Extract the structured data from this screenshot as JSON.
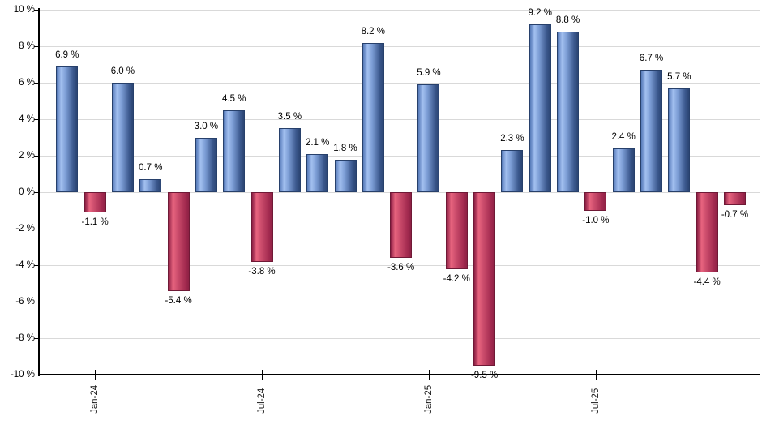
{
  "chart_data": {
    "type": "bar",
    "title": "",
    "xlabel": "",
    "ylabel": "",
    "grid": true,
    "legend_visible": false,
    "y_axis": {
      "min": -10,
      "max": 10,
      "tick_step": 2,
      "unit": "%",
      "tick_labels": [
        "10 %",
        "8 %",
        "6 %",
        "4 %",
        "2 %",
        "0 %",
        "-2 %",
        "-4 %",
        "-6 %",
        "-8 %",
        "-10 %"
      ]
    },
    "x_axis": {
      "tick_labels": [
        "Jan-24",
        "Jul-24",
        "Jan-25",
        "Jul-25"
      ],
      "tick_bar_indices": [
        1,
        7,
        13,
        19
      ]
    },
    "bars": [
      {
        "value": 6.9,
        "label": "6.9 %"
      },
      {
        "value": -1.1,
        "label": "-1.1 %"
      },
      {
        "value": 6.0,
        "label": "6.0 %"
      },
      {
        "value": 0.7,
        "label": "0.7 %"
      },
      {
        "value": -5.4,
        "label": "-5.4 %"
      },
      {
        "value": 3.0,
        "label": "3.0 %"
      },
      {
        "value": 4.5,
        "label": "4.5 %"
      },
      {
        "value": -3.8,
        "label": "-3.8 %"
      },
      {
        "value": 3.5,
        "label": "3.5 %"
      },
      {
        "value": 2.1,
        "label": "2.1 %"
      },
      {
        "value": 1.8,
        "label": "1.8 %"
      },
      {
        "value": 8.2,
        "label": "8.2 %"
      },
      {
        "value": -3.6,
        "label": "-3.6 %"
      },
      {
        "value": 5.9,
        "label": "5.9 %"
      },
      {
        "value": -4.2,
        "label": "-4.2 %"
      },
      {
        "value": -9.5,
        "label": "-9.5 %"
      },
      {
        "value": 2.3,
        "label": "2.3 %"
      },
      {
        "value": 9.2,
        "label": "9.2 %"
      },
      {
        "value": 8.8,
        "label": "8.8 %"
      },
      {
        "value": -1.0,
        "label": "-1.0 %"
      },
      {
        "value": 2.4,
        "label": "2.4 %"
      },
      {
        "value": 6.7,
        "label": "6.7 %"
      },
      {
        "value": 5.7,
        "label": "5.7 %"
      },
      {
        "value": -4.4,
        "label": "-4.4 %"
      },
      {
        "value": -0.7,
        "label": "-0.7 %"
      }
    ],
    "colors": {
      "positive_gradient": [
        "#5579b8",
        "#a3c0f0",
        "#7b9cd4",
        "#3a578c",
        "#2b4573"
      ],
      "negative_gradient": [
        "#8c1f44",
        "#e8647f",
        "#cb4c6c",
        "#a42b50",
        "#8e2145"
      ],
      "positive_border": "#27406b",
      "negative_border": "#6f1936",
      "gridline": "#d9d9d9",
      "axis": "#000000",
      "label_text": "#000000",
      "background": "#ffffff"
    }
  }
}
